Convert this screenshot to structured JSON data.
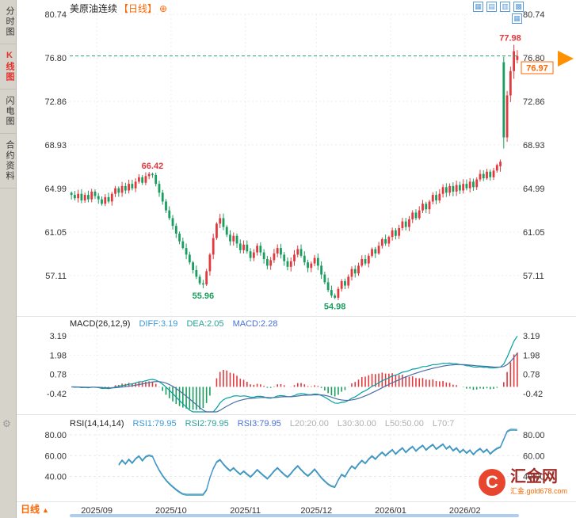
{
  "sidebar": {
    "items": [
      {
        "label": "分时图",
        "active": false
      },
      {
        "label": "K线图",
        "active": true
      },
      {
        "label": "闪电图",
        "active": false
      },
      {
        "label": "合约资料",
        "active": false
      }
    ]
  },
  "header": {
    "title": "美原油连续",
    "period": "【日线】"
  },
  "icons": {
    "plus": "⊕",
    "gear": "⚙",
    "toolbar": [
      "▦",
      "▤",
      "▥",
      "▩",
      "▦"
    ],
    "logo_glyph": "C"
  },
  "main_chart": {
    "y_ticks": [
      {
        "label": "80.74",
        "value": 80.74
      },
      {
        "label": "76.80",
        "value": 76.8
      },
      {
        "label": "72.86",
        "value": 72.86
      },
      {
        "label": "68.93",
        "value": 68.93
      },
      {
        "label": "64.99",
        "value": 64.99
      },
      {
        "label": "61.05",
        "value": 61.05
      },
      {
        "label": "57.11",
        "value": 57.11
      }
    ],
    "annotations": [
      {
        "label": "77.98",
        "value": 77.98,
        "index": 131,
        "color": "#e0393e",
        "pos": "above"
      },
      {
        "label": "66.42",
        "value": 66.42,
        "index": 24,
        "color": "#e0393e",
        "pos": "above"
      },
      {
        "label": "55.96",
        "value": 55.96,
        "index": 39,
        "color": "#1a9e5f",
        "pos": "below"
      },
      {
        "label": "54.98",
        "value": 54.98,
        "index": 78,
        "color": "#1a9e5f",
        "pos": "below"
      }
    ],
    "current_price": {
      "label": "76.97",
      "value": 76.97
    }
  },
  "macd": {
    "title": "MACD(26,12,9)",
    "diff": "DIFF:3.19",
    "dea": "DEA:2.05",
    "macd": "MACD:2.28",
    "y_ticks": [
      {
        "label": "3.19",
        "value": 3.19
      },
      {
        "label": "1.98",
        "value": 1.98
      },
      {
        "label": "0.78",
        "value": 0.78
      },
      {
        "label": "-0.42",
        "value": -0.42
      }
    ]
  },
  "rsi": {
    "title": "RSI(14,14,14)",
    "rsi1": "RSI1:79.95",
    "rsi2": "RSI2:79.95",
    "rsi3": "RSI3:79.95",
    "l20": "L20:20.00",
    "l30": "L30:30.00",
    "l50": "L50:50.00",
    "l70": "L70:7",
    "y_ticks": [
      {
        "label": "80.00",
        "value": 80
      },
      {
        "label": "60.00",
        "value": 60
      },
      {
        "label": "40.00",
        "value": 40
      }
    ]
  },
  "x_axis": {
    "months": [
      {
        "label": "2025/09",
        "index": 8
      },
      {
        "label": "2025/10",
        "index": 30
      },
      {
        "label": "2025/11",
        "index": 52
      },
      {
        "label": "2025/12",
        "index": 73
      },
      {
        "label": "2026/01",
        "index": 95
      },
      {
        "label": "2026/02",
        "index": 117
      }
    ]
  },
  "bottom": {
    "period": "日线",
    "arrow": "▲"
  },
  "logo": {
    "name": "汇金网",
    "site": "汇金.gold678.com"
  },
  "colors": {
    "up": "#e0393e",
    "down": "#1a9e5f",
    "diff_line": "#00a0a0",
    "dea_line": "#4a6fa5",
    "rsi_line": "#4a90d9",
    "rsi2_line": "#2aa198",
    "price_line": "#2e9e6f",
    "accent": "#ff6600"
  },
  "chart_data": {
    "type": "candlestick",
    "title": "美原油连续 日线",
    "ylim": [
      53.9,
      80.74
    ],
    "closes": [
      64.4,
      64.1,
      64.5,
      63.9,
      64.4,
      64.0,
      64.7,
      64.3,
      64.0,
      63.6,
      64.2,
      63.8,
      64.5,
      65.0,
      64.6,
      65.2,
      64.8,
      65.4,
      65.0,
      65.6,
      66.0,
      65.5,
      66.1,
      66.3,
      66.2,
      65.4,
      64.6,
      63.8,
      63.0,
      62.3,
      61.6,
      60.9,
      60.2,
      59.6,
      59.0,
      58.3,
      57.6,
      57.0,
      56.4,
      56.3,
      57.5,
      59.0,
      60.5,
      61.8,
      62.3,
      61.5,
      60.8,
      60.2,
      60.7,
      60.0,
      59.4,
      59.9,
      59.3,
      58.7,
      59.2,
      59.8,
      59.2,
      58.6,
      58.0,
      58.5,
      59.1,
      59.6,
      59.0,
      58.4,
      57.9,
      58.4,
      59.0,
      59.5,
      58.9,
      58.3,
      57.8,
      58.2,
      58.7,
      58.0,
      57.2,
      56.5,
      55.8,
      55.3,
      55.1,
      55.9,
      56.6,
      56.2,
      57.0,
      57.7,
      57.3,
      58.0,
      58.6,
      58.2,
      58.9,
      59.5,
      59.1,
      59.8,
      60.4,
      60.0,
      60.6,
      61.2,
      60.7,
      61.4,
      62.0,
      61.5,
      62.2,
      62.8,
      62.3,
      63.0,
      63.6,
      63.1,
      63.8,
      64.4,
      63.9,
      64.5,
      65.1,
      64.6,
      65.2,
      64.7,
      65.3,
      64.8,
      65.4,
      65.0,
      65.6,
      65.1,
      65.8,
      66.3,
      65.9,
      66.5,
      66.0,
      66.6,
      67.1
    ],
    "tail_ohlc": [
      [
        67.0,
        67.6,
        66.5,
        67.4
      ],
      [
        76.4,
        76.9,
        68.6,
        69.6
      ],
      [
        69.6,
        73.8,
        69.2,
        73.4
      ],
      [
        73.4,
        76.0,
        72.8,
        75.6
      ],
      [
        75.6,
        77.98,
        74.9,
        77.4
      ],
      [
        76.6,
        77.5,
        76.3,
        76.97
      ]
    ],
    "high_overrides": {
      "24": 66.42
    },
    "low_overrides": {
      "39": 55.96,
      "78": 54.98
    },
    "indicators": {
      "macd_params": [
        26,
        12,
        9
      ],
      "rsi_params": [
        14,
        14,
        14
      ]
    }
  }
}
